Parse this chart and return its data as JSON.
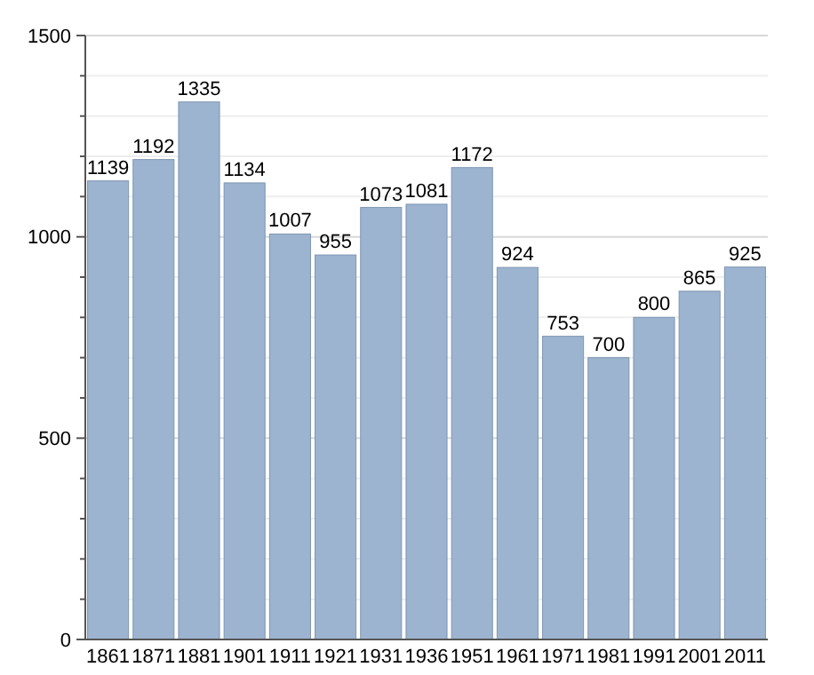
{
  "chart_data": {
    "type": "bar",
    "categories": [
      "1861",
      "1871",
      "1881",
      "1901",
      "1911",
      "1921",
      "1931",
      "1936",
      "1951",
      "1961",
      "1971",
      "1981",
      "1991",
      "2001",
      "2011"
    ],
    "values": [
      1139,
      1192,
      1335,
      1134,
      1007,
      955,
      1073,
      1081,
      1172,
      924,
      753,
      700,
      800,
      865,
      925
    ],
    "color": "#9cb4d0",
    "data_labels": true,
    "grid": "y",
    "ylim": [
      0,
      1500
    ],
    "yticks": [
      0,
      {
        "value": 100,
        "label": null
      },
      {
        "value": 200,
        "label": null
      },
      {
        "value": 300,
        "label": null
      },
      {
        "value": 400,
        "label": null
      },
      500,
      {
        "value": 600,
        "label": null
      },
      {
        "value": 700,
        "label": null
      },
      {
        "value": 800,
        "label": null
      },
      {
        "value": 900,
        "label": null
      },
      1000,
      {
        "value": 1100,
        "label": null
      },
      {
        "value": 1200,
        "label": null
      },
      {
        "value": 1300,
        "label": null
      },
      {
        "value": 1400,
        "label": null
      },
      1500
    ]
  }
}
